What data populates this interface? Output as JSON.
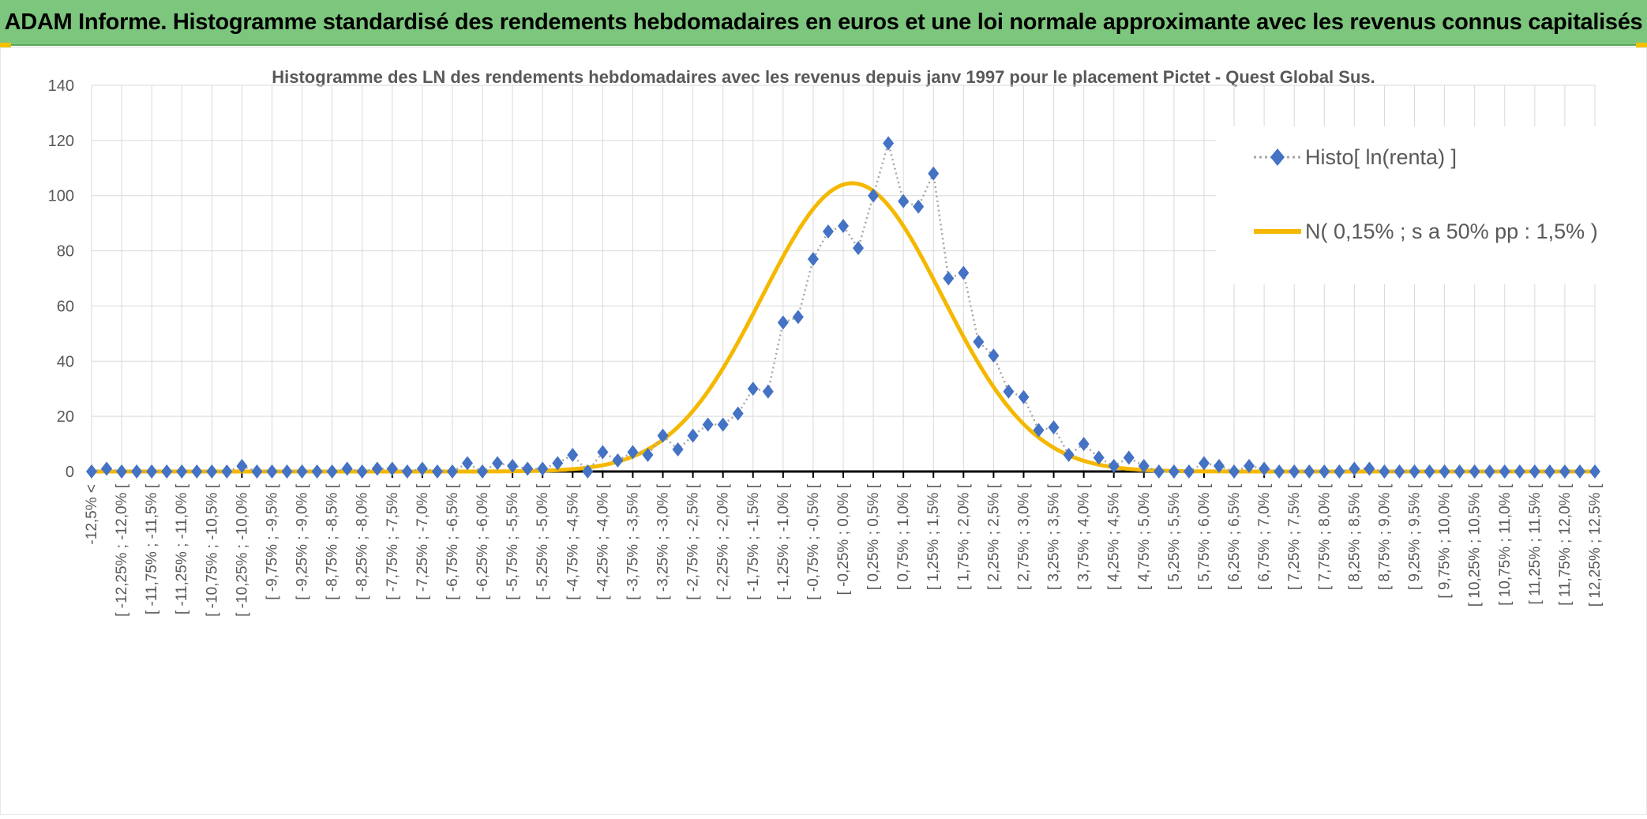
{
  "header": {
    "title": "ADAM Informe. Histogramme standardisé des rendements hebdomadaires en euros et une loi normale approximante avec les revenus connus capitalisés"
  },
  "colors": {
    "header_bg": "#7dc67d",
    "accent": "#f2c200",
    "histo": "#4472c4",
    "normal": "#f5b800",
    "grid": "#d9d9d9"
  },
  "chart_data": {
    "type": "line",
    "title": "Histogramme des LN des rendements hebdomadaires avec les revenus depuis janv 1997 pour le placement Pictet - Quest Global Sus.",
    "xlabel": "",
    "ylabel": "",
    "ylim": [
      0,
      140
    ],
    "yticks": [
      0,
      20,
      40,
      60,
      80,
      100,
      120,
      140
    ],
    "grid": true,
    "legend_position": "top-right",
    "categories": [
      "-12,5% <",
      "[ -12,25% ; -12,0% [",
      "[ -11,75% ; -11,5% [",
      "[ -11,25% ; -11,0% [",
      "[ -10,75% ; -10,5% [",
      "[ -10,25% ; -10,0% [",
      "[ -9,75% ; -9,5% [",
      "[ -9,25% ; -9,0% [",
      "[ -8,75% ; -8,5% [",
      "[ -8,25% ; -8,0% [",
      "[ -7,75% ; -7,5% [",
      "[ -7,25% ; -7,0% [",
      "[ -6,75% ; -6,5% [",
      "[ -6,25% ; -6,0% [",
      "[ -5,75% ; -5,5% [",
      "[ -5,25% ; -5,0% [",
      "[ -4,75% ; -4,5% [",
      "[ -4,25% ; -4,0% [",
      "[ -3,75% ; -3,5% [",
      "[ -3,25% ; -3,0% [",
      "[ -2,75% ; -2,5% [",
      "[ -2,25% ; -2,0% [",
      "[ -1,75% ; -1,5% [",
      "[ -1,25% ; -1,0% [",
      "[ -0,75% ; -0,5% [",
      "[ -0,25% ; 0,0% [",
      "[ 0,25% ; 0,5% [",
      "[ 0,75% ; 1,0% [",
      "[ 1,25% ; 1,5% [",
      "[ 1,75% ; 2,0% [",
      "[ 2,25% ; 2,5% [",
      "[ 2,75% ; 3,0% [",
      "[ 3,25% ; 3,5% [",
      "[ 3,75% ; 4,0% [",
      "[ 4,25% ; 4,5% [",
      "[ 4,75% ; 5,0% [",
      "[ 5,25% ; 5,5% [",
      "[ 5,75% ; 6,0% [",
      "[ 6,25% ; 6,5% [",
      "[ 6,75% ; 7,0% [",
      "[ 7,25% ; 7,5% [",
      "[ 7,75% ; 8,0% [",
      "[ 8,25% ; 8,5% [",
      "[ 8,75% ; 9,0% [",
      "[ 9,25% ; 9,5% [",
      "[ 9,75% ; 10,0% [",
      "[ 10,25% ; 10,5% [",
      "[ 10,75% ; 11,0% [",
      "[ 11,25% ; 11,5% [",
      "[ 11,75% ; 12,0% [",
      "[ 12,25% ; 12,5% ["
    ],
    "x": [
      -12.5,
      -12.25,
      -12.0,
      -11.75,
      -11.5,
      -11.25,
      -11.0,
      -10.75,
      -10.5,
      -10.25,
      -10.0,
      -9.75,
      -9.5,
      -9.25,
      -9.0,
      -8.75,
      -8.5,
      -8.25,
      -8.0,
      -7.75,
      -7.5,
      -7.25,
      -7.0,
      -6.75,
      -6.5,
      -6.25,
      -6.0,
      -5.75,
      -5.5,
      -5.25,
      -5.0,
      -4.75,
      -4.5,
      -4.25,
      -4.0,
      -3.75,
      -3.5,
      -3.25,
      -3.0,
      -2.75,
      -2.5,
      -2.25,
      -2.0,
      -1.75,
      -1.5,
      -1.25,
      -1.0,
      -0.75,
      -0.5,
      -0.25,
      0.0,
      0.25,
      0.5,
      0.75,
      1.0,
      1.25,
      1.5,
      1.75,
      2.0,
      2.25,
      2.5,
      2.75,
      3.0,
      3.25,
      3.5,
      3.75,
      4.0,
      4.25,
      4.5,
      4.75,
      5.0,
      5.25,
      5.5,
      5.75,
      6.0,
      6.25,
      6.5,
      6.75,
      7.0,
      7.25,
      7.5,
      7.75,
      8.0,
      8.25,
      8.5,
      8.75,
      9.0,
      9.25,
      9.5,
      9.75,
      10.0,
      10.25,
      10.5,
      10.75,
      11.0,
      11.25,
      11.5,
      11.75,
      12.0,
      12.25,
      12.5
    ],
    "series": [
      {
        "name": "Histo[ ln(renta) ]",
        "style": "dotted-line-diamond-markers",
        "values": [
          0,
          1,
          0,
          0,
          0,
          0,
          0,
          0,
          0,
          0,
          2,
          0,
          0,
          0,
          0,
          0,
          0,
          1,
          0,
          1,
          1,
          0,
          1,
          0,
          0,
          3,
          0,
          3,
          2,
          1,
          1,
          3,
          6,
          0,
          7,
          4,
          7,
          6,
          13,
          8,
          13,
          17,
          17,
          21,
          30,
          29,
          54,
          56,
          77,
          87,
          89,
          81,
          100,
          119,
          98,
          96,
          108,
          70,
          72,
          47,
          42,
          29,
          27,
          15,
          16,
          6,
          10,
          5,
          2,
          5,
          2,
          0,
          0,
          0,
          3,
          2,
          0,
          2,
          1,
          0,
          0,
          0,
          0,
          0,
          1,
          1,
          0,
          0,
          0,
          0,
          0,
          0,
          0,
          0,
          0,
          0,
          0,
          0,
          0,
          0,
          0
        ]
      },
      {
        "name": "N( 0,15% ; s a 50% pp : 1,5% )",
        "style": "solid-line",
        "mean": 0.15,
        "sd": 1.5,
        "peak": 104.5
      }
    ]
  }
}
